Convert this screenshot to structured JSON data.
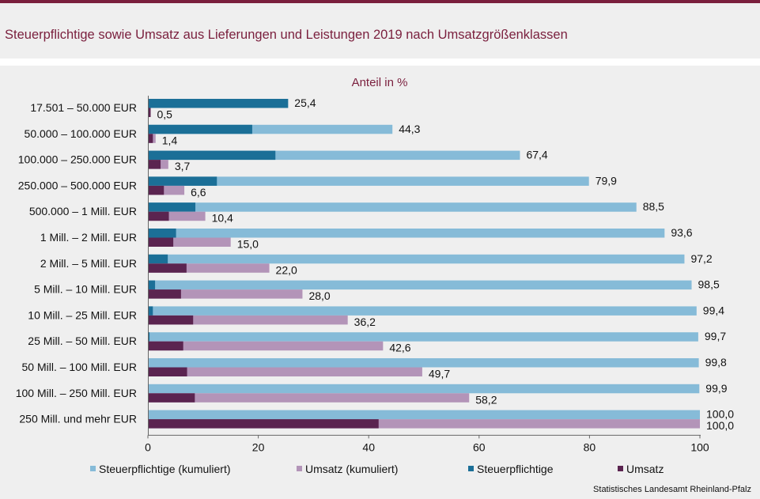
{
  "title": "Steuerpflichtige sowie Umsatz aus Lieferungen und Leistungen 2019 nach Umsatzgrößenklassen",
  "source": "Statistisches Landesamt Rheinland-Pfalz",
  "colors": {
    "steuer_kum": "#86bbd8",
    "umsatz_kum": "#b394b8",
    "steuer": "#1b6f97",
    "umsatz": "#5b2450",
    "brand": "#7a1f3d"
  },
  "chart_data": {
    "type": "bar",
    "orientation": "horizontal",
    "subtitle": "Anteil in %",
    "categories": [
      "17.501 – 50.000 EUR",
      "50.000 – 100.000 EUR",
      "100.000 – 250.000 EUR",
      "250.000 – 500.000 EUR",
      "500.000 – 1 Mill. EUR",
      "1 Mill. – 2 Mill. EUR",
      "2 Mill. – 5 Mill. EUR",
      "5 Mill. – 10 Mill. EUR",
      "10 Mill. – 25 Mill. EUR",
      "25 Mill. – 50 Mill. EUR",
      "50 Mill. – 100 Mill. EUR",
      "100 Mill. – 250 Mill. EUR",
      "250 Mill. und mehr EUR"
    ],
    "series": [
      {
        "name": "Steuerpflichtige (kumuliert)",
        "values": [
          25.4,
          44.3,
          67.4,
          79.9,
          88.5,
          93.6,
          97.2,
          98.5,
          99.4,
          99.7,
          99.8,
          99.9,
          100.0
        ]
      },
      {
        "name": "Umsatz (kumuliert)",
        "values": [
          0.5,
          1.4,
          3.7,
          6.6,
          10.4,
          15.0,
          22.0,
          28.0,
          36.2,
          42.6,
          49.7,
          58.2,
          100.0
        ]
      },
      {
        "name": "Steuerpflichtige",
        "values": [
          25.4,
          18.9,
          23.1,
          12.5,
          8.6,
          5.1,
          3.6,
          1.3,
          0.9,
          0.3,
          0.1,
          0.1,
          0.1
        ]
      },
      {
        "name": "Umsatz",
        "values": [
          0.5,
          0.9,
          2.3,
          2.9,
          3.8,
          4.6,
          7.0,
          6.0,
          8.2,
          6.4,
          7.1,
          8.5,
          41.8
        ]
      }
    ],
    "data_labels": {
      "steuer_kum": [
        "25,4",
        "44,3",
        "67,4",
        "79,9",
        "88,5",
        "93,6",
        "97,2",
        "98,5",
        "99,4",
        "99,7",
        "99,8",
        "99,9",
        "100,0"
      ],
      "umsatz_kum": [
        "0,5",
        "1,4",
        "3,7",
        "6,6",
        "10,4",
        "15,0",
        "22,0",
        "28,0",
        "36,2",
        "42,6",
        "49,7",
        "58,2",
        "100,0"
      ]
    },
    "xlim": [
      0,
      100
    ],
    "xticks": [
      "0",
      "20",
      "40",
      "60",
      "80",
      "100"
    ],
    "grid": false,
    "legend_position": "bottom"
  }
}
